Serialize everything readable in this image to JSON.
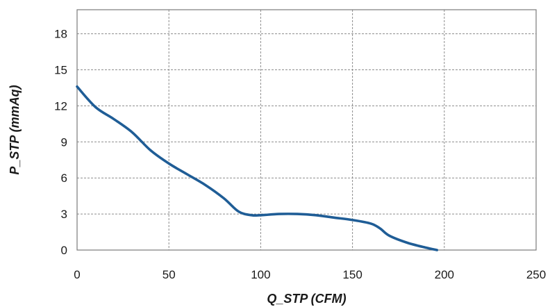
{
  "chart_data": {
    "type": "line",
    "title": "",
    "xlabel": "Q_STP (CFM)",
    "ylabel": "P_STP (mmAq)",
    "xlim": [
      0,
      250
    ],
    "ylim": [
      0,
      20
    ],
    "xticks": [
      0,
      50,
      100,
      150,
      200,
      250
    ],
    "yticks": [
      0,
      3,
      6,
      9,
      12,
      15,
      18
    ],
    "grid": true,
    "legend": "none",
    "colors": {
      "series": "#1f5d96",
      "grid": "#8c8c8c",
      "frame": "#7a7a7a"
    },
    "series": [
      {
        "x": [
          0,
          10,
          20,
          30,
          40,
          50,
          60,
          70,
          80,
          88,
          95,
          100,
          110,
          120,
          130,
          140,
          150,
          160,
          165,
          170,
          180,
          190,
          196
        ],
        "y": [
          13.6,
          11.9,
          10.9,
          9.8,
          8.3,
          7.2,
          6.3,
          5.4,
          4.3,
          3.2,
          2.9,
          2.9,
          3.0,
          3.0,
          2.9,
          2.7,
          2.5,
          2.2,
          1.8,
          1.2,
          0.6,
          0.2,
          0.0
        ]
      }
    ]
  }
}
